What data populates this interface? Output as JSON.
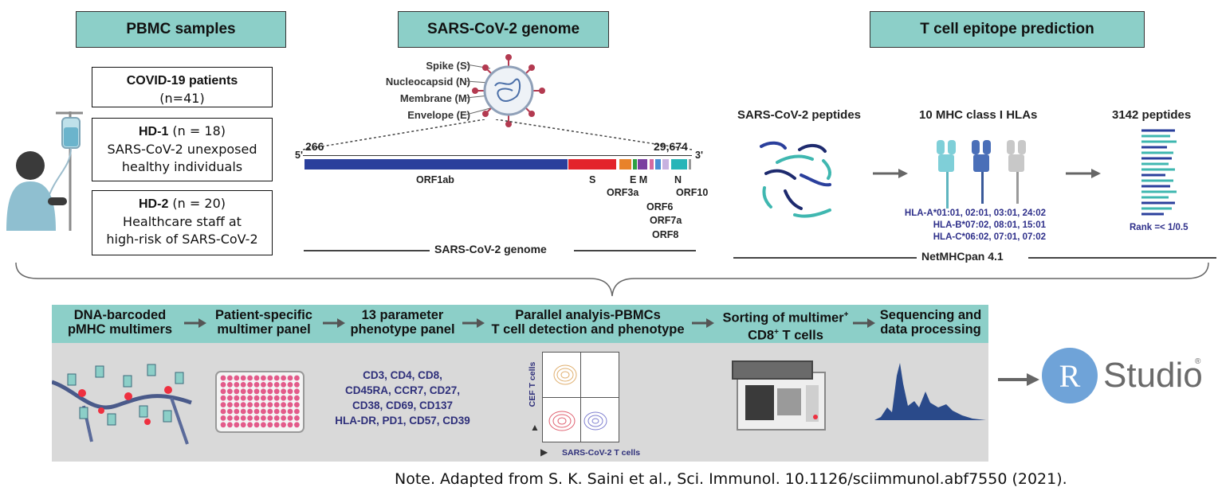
{
  "headers": {
    "pbmc": "PBMC samples",
    "genome": "SARS-CoV-2 genome",
    "epitope": "T cell epitope prediction"
  },
  "samples": {
    "covid_title": "COVID-19 patients",
    "covid_n": "(n=41)",
    "hd1_title": "HD-1",
    "hd1_n": " (n = 18)",
    "hd1_desc1": "SARS-CoV-2 unexposed",
    "hd1_desc2": "healthy individuals",
    "hd2_title": "HD-2",
    "hd2_n": " (n = 20)",
    "hd2_desc1": "Healthcare staff at",
    "hd2_desc2": "high-risk of SARS-CoV-2"
  },
  "virus_labels": {
    "spike": "Spike (S)",
    "nucleocapsid": "Nucleocapsid (N)",
    "membrane": "Membrane (M)",
    "envelope": "Envelope (E)"
  },
  "genome_map": {
    "five_prime": "5'",
    "three_prime": "3'",
    "start": "266",
    "end": "29,674",
    "orf1ab": "ORF1ab",
    "s": "S",
    "orf3a": "ORF3a",
    "em": "E M",
    "n": "N",
    "orf10": "ORF10",
    "orf6": "ORF6",
    "orf7a": "ORF7a",
    "orf8": "ORF8",
    "caption": "SARS-CoV-2 genome",
    "colors": {
      "orf1ab": "#2a3f9c",
      "s": "#e3242b",
      "orf3a": "#e8822a",
      "e": "#2ea043",
      "m": "#7b3fa0",
      "orf6": "#d46aa0",
      "orf7a": "#4a8fd4",
      "orf8": "#c7b2e0",
      "n": "#27b5b8",
      "orf10": "#9a9a9a"
    }
  },
  "prediction": {
    "peptides_label": "SARS-CoV-2 peptides",
    "hla_label": "10 MHC class I HLAs",
    "result_label": "3142 peptides",
    "hla_a": "HLA-A*01:01, 02:01, 03:01, 24:02",
    "hla_b": "HLA-B*07:02, 08:01, 15:01",
    "hla_c": "HLA-C*06:02, 07:01, 07:02",
    "rank": "Rank =< 1/0.5",
    "tool": "NetMHCpan 4.1"
  },
  "workflow": {
    "step1": [
      "DNA-barcoded",
      "pMHC multimers"
    ],
    "step2": [
      "Patient-specific",
      "multimer panel"
    ],
    "step3": [
      "13 parameter",
      "phenotype panel"
    ],
    "step4": [
      "Parallel analyis-PBMCs",
      "T cell detection and phenotype"
    ],
    "step5_a": "Sorting of multimer",
    "step5_sup": "+",
    "step5_b": "CD8",
    "step5_sup2": "+",
    "step5_c": " T cells",
    "step6": [
      "Sequencing and",
      "data processing"
    ],
    "markers": [
      "CD3, CD4, CD8,",
      "CD45RA, CCR7, CD27,",
      "CD38, CD69, CD137",
      "HLA-DR, PD1, CD57, CD39"
    ],
    "flow_y": "CEF T cells",
    "flow_x": "SARS-CoV-2 T cells"
  },
  "rstudio": {
    "letter": "R",
    "word": "Studio",
    "reg": "®"
  },
  "note": "Note. Adapted from S. K. Saini et al., Sci. Immunol. 10.1126/sciimmunol.abf7550 (2021)."
}
